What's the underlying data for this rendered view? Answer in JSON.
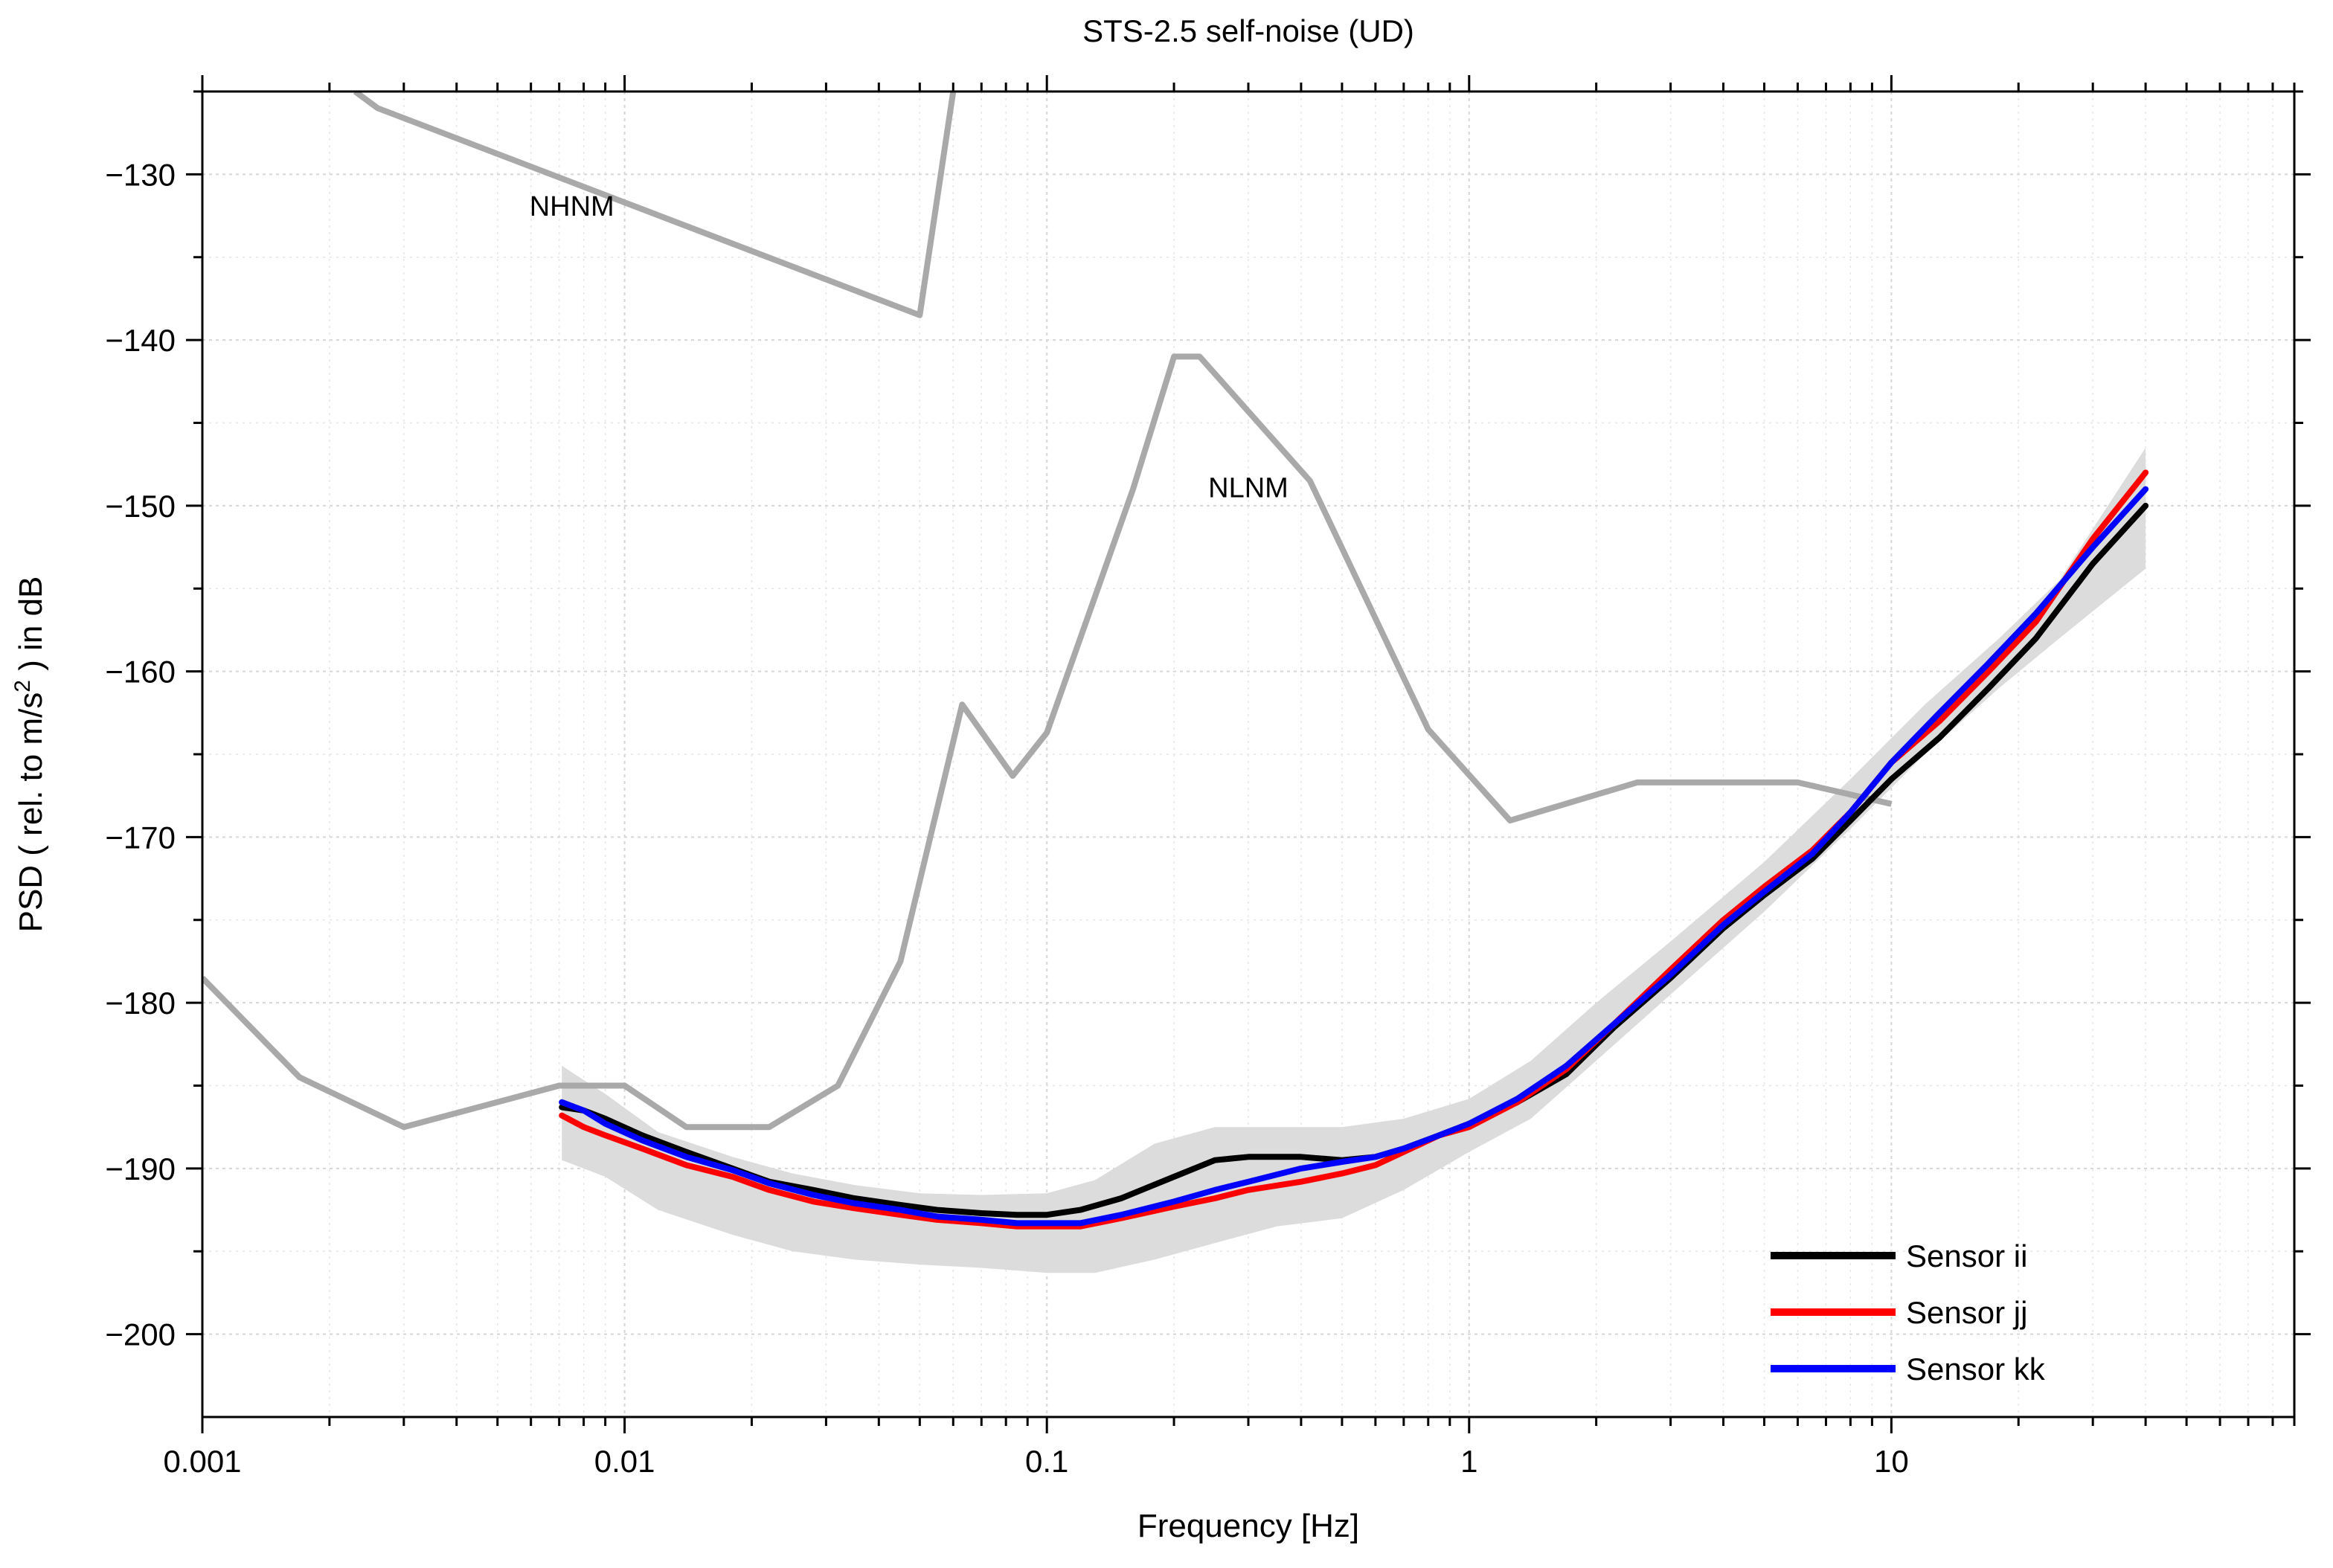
{
  "chart_data": {
    "type": "line",
    "title": "STS-2.5 self-noise (UD)",
    "xlabel": "Frequency [Hz]",
    "ylabel_parts": [
      "PSD ( rel. to m/s",
      "2",
      " ) in dB"
    ],
    "xscale": "log",
    "xlim": [
      0.001,
      90
    ],
    "ylim": [
      -205,
      -125
    ],
    "x_ticks": [
      {
        "value": 0.001,
        "label": "0.001"
      },
      {
        "value": 0.01,
        "label": "0.01"
      },
      {
        "value": 0.1,
        "label": "0.1"
      },
      {
        "value": 1,
        "label": "1"
      },
      {
        "value": 10,
        "label": "10"
      }
    ],
    "y_ticks": [
      {
        "value": -130,
        "label": "−130"
      },
      {
        "value": -140,
        "label": "−140"
      },
      {
        "value": -150,
        "label": "−150"
      },
      {
        "value": -160,
        "label": "−160"
      },
      {
        "value": -170,
        "label": "−170"
      },
      {
        "value": -180,
        "label": "−180"
      },
      {
        "value": -190,
        "label": "−190"
      },
      {
        "value": -200,
        "label": "−200"
      }
    ],
    "grid": true,
    "legend_position": "bottom-right",
    "reference_models": [
      {
        "name": "NHNM",
        "color": "#a9a9a9",
        "label_at": [
          0.0075,
          -132.5
        ],
        "x": [
          0.0023,
          0.0026,
          0.05,
          0.06
        ],
        "y": [
          -125,
          -126,
          -138.5,
          -125
        ]
      },
      {
        "name": "NLNM",
        "color": "#a9a9a9",
        "label_at": [
          0.3,
          -149.5
        ],
        "x": [
          0.001,
          0.0017,
          0.003,
          0.007,
          0.01,
          0.014,
          0.022,
          0.032,
          0.045,
          0.063,
          0.083,
          0.1,
          0.16,
          0.2,
          0.23,
          0.42,
          0.8,
          1.25,
          2.5,
          6,
          10
        ],
        "y": [
          -178.5,
          -184.5,
          -187.5,
          -185,
          -185,
          -187.5,
          -187.5,
          -185,
          -177.5,
          -162,
          -166.3,
          -163.7,
          -149,
          -141,
          -141,
          -148.5,
          -163.5,
          -169,
          -166.7,
          -166.7,
          -168
        ]
      }
    ],
    "band": {
      "name": "spread",
      "color": "#dcdcdc",
      "x": [
        0.0071,
        0.009,
        0.012,
        0.018,
        0.025,
        0.035,
        0.05,
        0.07,
        0.1,
        0.13,
        0.18,
        0.25,
        0.35,
        0.5,
        0.7,
        1,
        1.4,
        2,
        3,
        5,
        8,
        12,
        18,
        25,
        40
      ],
      "upper": [
        -183.8,
        -185.5,
        -187.8,
        -189.3,
        -190.3,
        -191,
        -191.5,
        -191.6,
        -191.5,
        -190.7,
        -188.5,
        -187.5,
        -187.5,
        -187.5,
        -187,
        -185.8,
        -183.5,
        -180,
        -176.3,
        -171.5,
        -166.5,
        -162,
        -158,
        -154.5,
        -146.5
      ],
      "lower": [
        -189.5,
        -190.5,
        -192.5,
        -194,
        -195,
        -195.5,
        -195.8,
        -196,
        -196.3,
        -196.3,
        -195.5,
        -194.5,
        -193.5,
        -193,
        -191.3,
        -189,
        -187,
        -183.5,
        -179.5,
        -174.5,
        -169.5,
        -165,
        -161,
        -158,
        -153.8
      ]
    },
    "x": [
      0.0071,
      0.008,
      0.009,
      0.011,
      0.014,
      0.018,
      0.022,
      0.028,
      0.035,
      0.045,
      0.055,
      0.07,
      0.085,
      0.1,
      0.12,
      0.15,
      0.2,
      0.25,
      0.3,
      0.4,
      0.5,
      0.6,
      0.7,
      0.85,
      1,
      1.3,
      1.7,
      2.2,
      3,
      4,
      5,
      6.5,
      8,
      10,
      13,
      17,
      22,
      30,
      40
    ],
    "series": [
      {
        "name": "Sensor ii",
        "color": "#000000",
        "values": [
          -186.3,
          -186.5,
          -187,
          -188,
          -189,
          -190,
          -190.8,
          -191.3,
          -191.8,
          -192.2,
          -192.5,
          -192.7,
          -192.8,
          -192.8,
          -192.5,
          -191.8,
          -190.5,
          -189.5,
          -189.3,
          -189.3,
          -189.5,
          -189.3,
          -188.8,
          -188,
          -187.3,
          -186,
          -184.3,
          -181.5,
          -178.5,
          -175.5,
          -173.5,
          -171.3,
          -169,
          -166.5,
          -164,
          -161,
          -158,
          -153.5,
          -150
        ]
      },
      {
        "name": "Sensor jj",
        "color": "#ff0000",
        "values": [
          -186.8,
          -187.5,
          -188,
          -188.8,
          -189.8,
          -190.5,
          -191.3,
          -192,
          -192.4,
          -192.8,
          -193.1,
          -193.3,
          -193.5,
          -193.5,
          -193.5,
          -193,
          -192.3,
          -191.8,
          -191.3,
          -190.8,
          -190.3,
          -189.8,
          -189,
          -188,
          -187.5,
          -186,
          -184,
          -181.3,
          -178,
          -175,
          -173,
          -170.8,
          -168.5,
          -165.5,
          -163,
          -160,
          -157,
          -152,
          -148
        ]
      },
      {
        "name": "Sensor kk",
        "color": "#0000ff",
        "values": [
          -186,
          -186.5,
          -187.3,
          -188.3,
          -189.3,
          -190.1,
          -190.9,
          -191.6,
          -192.1,
          -192.5,
          -192.9,
          -193.1,
          -193.3,
          -193.3,
          -193.3,
          -192.8,
          -192,
          -191.3,
          -190.8,
          -190,
          -189.6,
          -189.3,
          -188.8,
          -188,
          -187.3,
          -185.8,
          -183.8,
          -181.3,
          -178.3,
          -175.3,
          -173.3,
          -171,
          -168.5,
          -165.5,
          -162.5,
          -159.5,
          -156.5,
          -152.5,
          -149
        ]
      }
    ],
    "legend": [
      {
        "label": "Sensor ii",
        "color": "#000000"
      },
      {
        "label": "Sensor jj",
        "color": "#ff0000"
      },
      {
        "label": "Sensor kk",
        "color": "#0000ff"
      }
    ]
  }
}
